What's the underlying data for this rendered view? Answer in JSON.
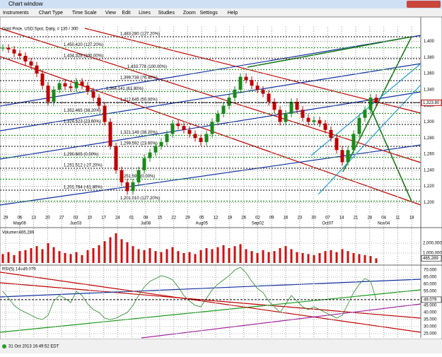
{
  "window": {
    "title": "Chart window",
    "menu": [
      "Instruments",
      "Chart Type",
      "Time Scale",
      "View",
      "Edit",
      "Lines",
      "Studies",
      "Zoom",
      "Settings",
      "Help"
    ],
    "status": "31 Oct 2013 16:49:52 EDT"
  },
  "chart_data": {
    "type": "candlestick",
    "title": "Gold Price, USD Spot, Daily, # 135 / 300",
    "ylim": [
      1188,
      1418
    ],
    "yticks": [
      {
        "value": 1400,
        "label": "1,400"
      },
      {
        "value": 1380,
        "label": "1,380"
      },
      {
        "value": 1360,
        "label": "1,360"
      },
      {
        "value": 1340,
        "label": "1,340"
      },
      {
        "value": 1320,
        "label": "1,320"
      },
      {
        "value": 1300,
        "label": "1,300"
      },
      {
        "value": 1280,
        "label": "1,280"
      },
      {
        "value": 1260,
        "label": "1,260"
      },
      {
        "value": 1240,
        "label": "1,240"
      },
      {
        "value": 1220,
        "label": "1,220"
      },
      {
        "value": 1200,
        "label": "1,200"
      }
    ],
    "last": {
      "value": 1323.8,
      "label": "1,323.80"
    },
    "grid": true,
    "day_labels": [
      "29",
      "06",
      "13",
      "20",
      "27",
      "03",
      "10",
      "17",
      "24",
      "01",
      "08",
      "15",
      "22",
      "29",
      "05",
      "12",
      "19",
      "26",
      "02",
      "09",
      "16",
      "23",
      "30",
      "07",
      "14",
      "21",
      "28",
      "04",
      "11",
      "18"
    ],
    "month_labels": [
      null,
      "May06",
      null,
      null,
      null,
      "Jun03",
      null,
      null,
      null,
      null,
      "Jul08",
      null,
      null,
      null,
      "Aug05",
      null,
      null,
      null,
      "Sep02",
      null,
      null,
      null,
      null,
      "Oct07",
      null,
      null,
      null,
      "Nov04",
      null,
      null
    ],
    "closes": [
      1392,
      1390,
      1385,
      1382,
      1375,
      1370,
      1360,
      1345,
      1325,
      1340,
      1348,
      1344,
      1342,
      1350,
      1345,
      1338,
      1330,
      1320,
      1300,
      1270,
      1240,
      1225,
      1214,
      1225,
      1240,
      1255,
      1262,
      1270,
      1275,
      1285,
      1298,
      1295,
      1290,
      1285,
      1280,
      1275,
      1285,
      1300,
      1310,
      1320,
      1330,
      1340,
      1356,
      1352,
      1345,
      1340,
      1335,
      1325,
      1315,
      1300,
      1310,
      1325,
      1315,
      1305,
      1300,
      1302,
      1298,
      1290,
      1280,
      1265,
      1250,
      1265,
      1285,
      1305,
      1315,
      1330,
      1323.8
    ],
    "fib_labels": [
      "1,483.280 (127.20%)",
      "1,450.420 (127.20%)",
      "1,434.328 (100.00%)",
      "1,433.778 (100.00%)",
      "1,399.738 (76.40%)",
      "1,364.141 (61.80%)",
      "1,412.645 (50.00%)",
      "1,352.465 (38.20%)",
      "1,324.523 (23.60%)",
      "1,321.149 (38.20%)",
      "1,299.592 (23.60%)",
      "1,290.605 (0.00%)",
      "1,251.512 (-27.20%)",
      "1,251.590 (0.00%)",
      "1,201.784 (-61.80%)",
      "1,201.010 (127.20%)"
    ],
    "volume": {
      "label": "Volume=465,289",
      "values": [
        900000,
        1100000,
        800000,
        1200000,
        1300000,
        1500000,
        1700000,
        1400000,
        2000000,
        1600000,
        1200000,
        1000000,
        900000,
        1100000,
        800000,
        1300000,
        1500000,
        1800000,
        2200000,
        2600000,
        3000000,
        2400000,
        2100000,
        1700000,
        1400000,
        1300000,
        1500000,
        1200000,
        1100000,
        1400000,
        1600000,
        1200000,
        1000000,
        1100000,
        900000,
        1300000,
        1500000,
        1400000,
        1600000,
        1800000,
        1500000,
        1700000,
        1900000,
        1400000,
        1200000,
        1000000,
        1300000,
        1100000,
        1200000,
        1500000,
        1700000,
        1400000,
        1100000,
        1000000,
        900000,
        800000,
        1000000,
        1200000,
        1300000,
        1100000,
        1400000,
        1200000,
        1000000,
        900000,
        800000,
        700000,
        465289
      ],
      "yticks": [
        {
          "value": 2000000,
          "label": "2,000,000"
        },
        {
          "value": 1000000,
          "label": "1,000,000"
        }
      ],
      "last": {
        "value": 465289,
        "label": "465,289"
      }
    },
    "rsi": {
      "label": "RSI(5) 14=49.079",
      "ylim": [
        23,
        72
      ],
      "values": [
        55,
        50,
        45,
        42,
        40,
        38,
        36,
        35,
        38,
        48,
        52,
        50,
        47,
        55,
        52,
        46,
        42,
        40,
        36,
        35,
        36,
        38,
        40,
        45,
        52,
        58,
        62,
        64,
        66,
        65,
        63,
        58,
        52,
        48,
        45,
        44,
        50,
        56,
        60,
        63,
        66,
        70,
        72,
        68,
        62,
        57,
        54,
        48,
        44,
        40,
        46,
        52,
        48,
        44,
        42,
        44,
        42,
        40,
        38,
        36,
        38,
        46,
        54,
        60,
        64,
        62,
        49.079
      ],
      "yticks": [
        {
          "value": 70,
          "label": "70.000"
        },
        {
          "value": 65,
          "label": "65.000"
        },
        {
          "value": 60,
          "label": "60.000"
        },
        {
          "value": 55,
          "label": "55.000"
        },
        {
          "value": 45,
          "label": "45.000"
        },
        {
          "value": 40,
          "label": "40.000"
        },
        {
          "value": 35,
          "label": "35.000"
        },
        {
          "value": 30,
          "label": "30.000"
        },
        {
          "value": 25,
          "label": "25.000"
        }
      ],
      "last": {
        "value": 49.079,
        "label": "49.079"
      }
    }
  }
}
